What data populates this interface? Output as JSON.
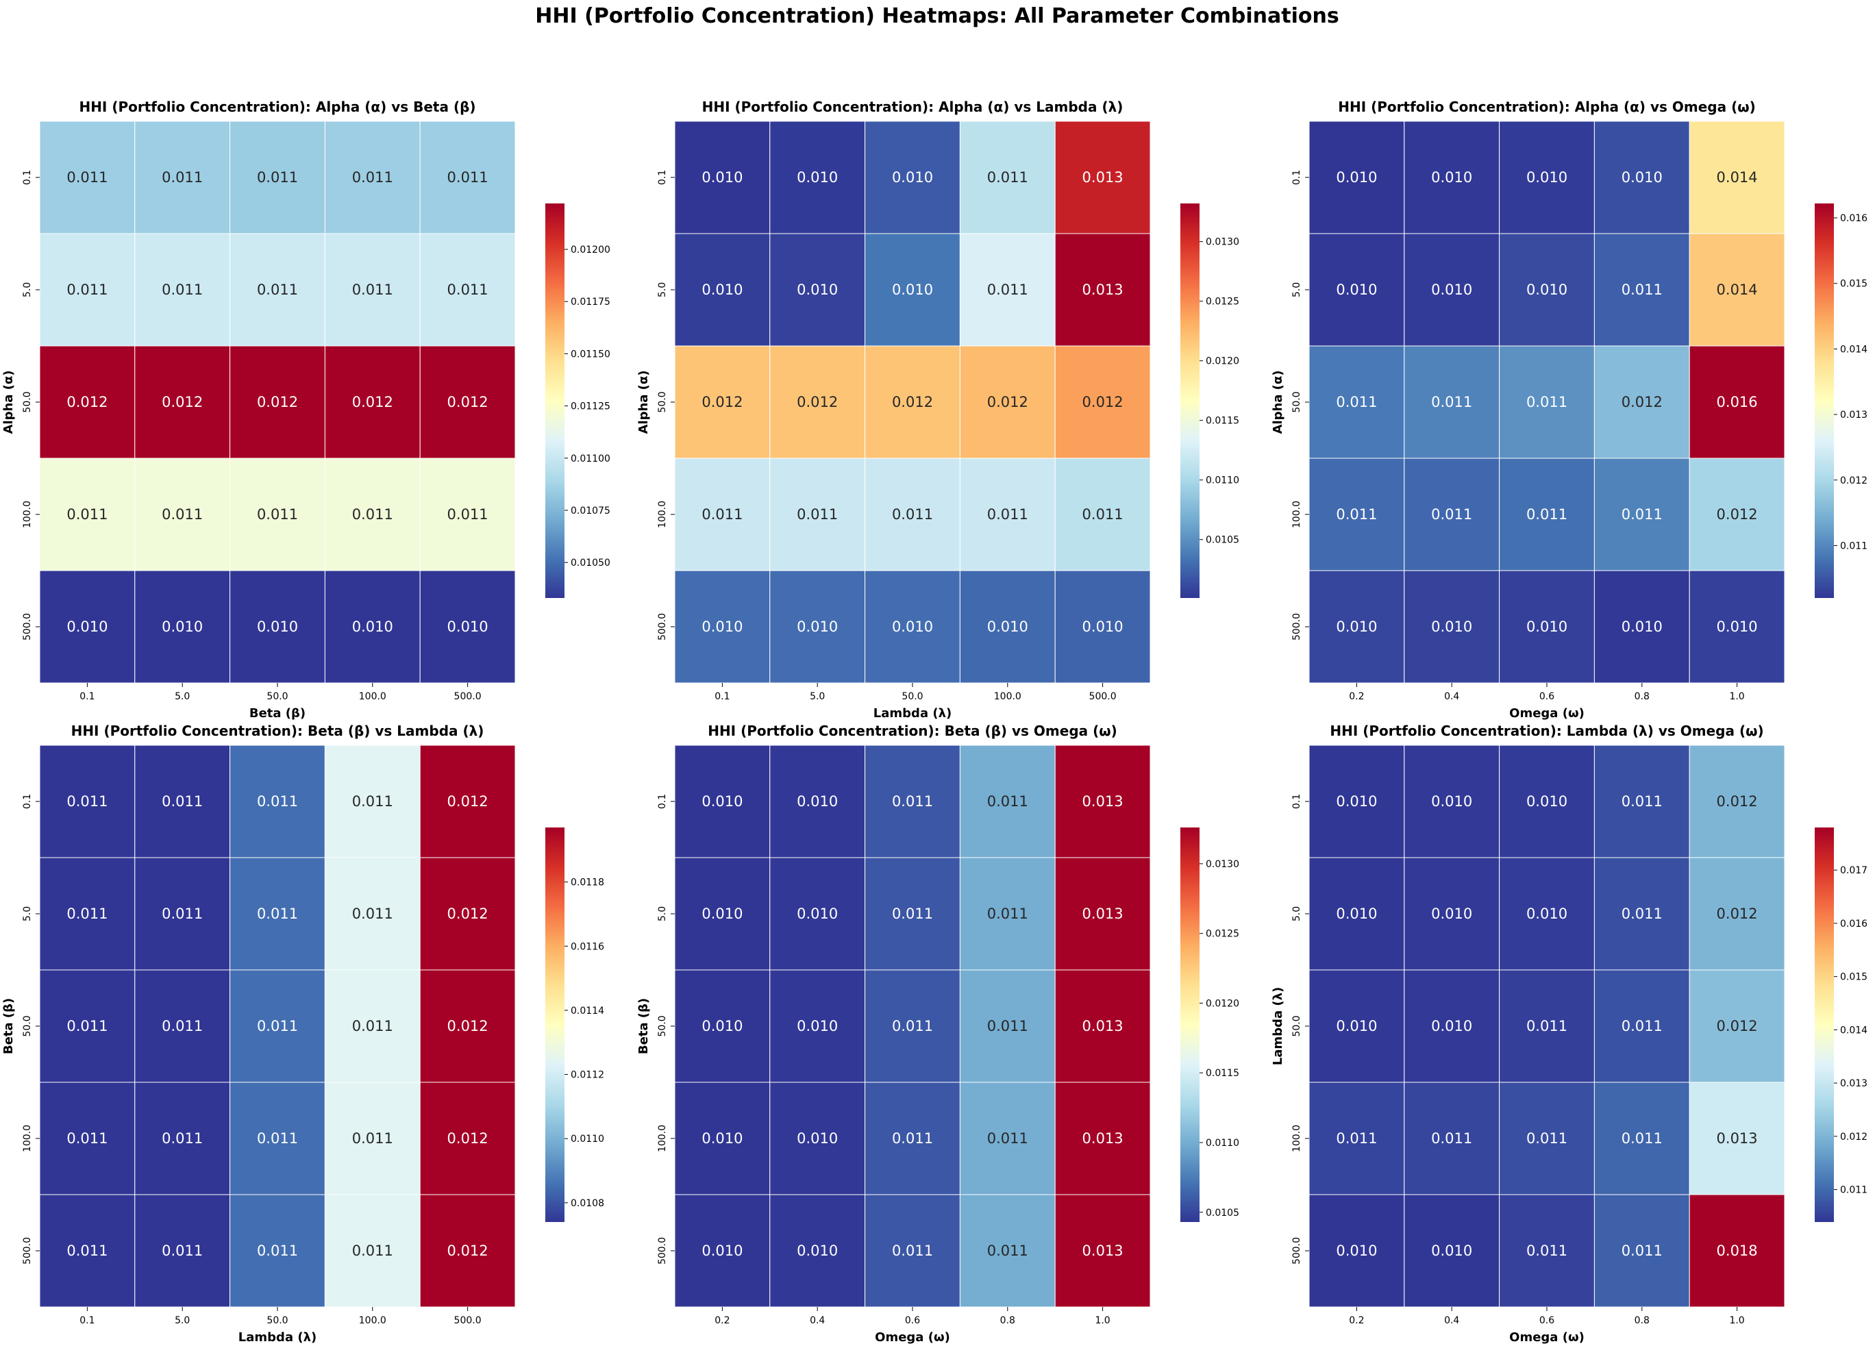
{
  "figure": {
    "suptitle": "HHI (Portfolio Concentration) Heatmaps: All Parameter Combinations",
    "colormap": "RdYlBu_r",
    "colormap_stops": [
      "#313695",
      "#4575b4",
      "#74add1",
      "#abd9e9",
      "#e0f3f8",
      "#ffffbf",
      "#fee090",
      "#fdae61",
      "#f46d43",
      "#d73027",
      "#a50026"
    ]
  },
  "chart_data": [
    {
      "type": "heatmap",
      "title": "HHI (Portfolio Concentration): Alpha (α) vs Beta (β)",
      "xlabel": "Beta (β)",
      "ylabel": "Alpha (α)",
      "x_categories": [
        "0.1",
        "5.0",
        "50.0",
        "100.0",
        "500.0"
      ],
      "y_categories": [
        "0.1",
        "5.0",
        "50.0",
        "100.0",
        "500.0"
      ],
      "values": [
        [
          0.01085,
          0.01085,
          0.01084,
          0.01085,
          0.01085
        ],
        [
          0.01102,
          0.01102,
          0.01102,
          0.01102,
          0.01102
        ],
        [
          0.01222,
          0.01222,
          0.01222,
          0.01222,
          0.01222
        ],
        [
          0.01119,
          0.01119,
          0.01119,
          0.01119,
          0.01119
        ],
        [
          0.01033,
          0.01033,
          0.01033,
          0.01033,
          0.01033
        ]
      ],
      "annotations": [
        [
          "0.011",
          "0.011",
          "0.011",
          "0.011",
          "0.011"
        ],
        [
          "0.011",
          "0.011",
          "0.011",
          "0.011",
          "0.011"
        ],
        [
          "0.012",
          "0.012",
          "0.012",
          "0.012",
          "0.012"
        ],
        [
          "0.011",
          "0.011",
          "0.011",
          "0.011",
          "0.011"
        ],
        [
          "0.010",
          "0.010",
          "0.010",
          "0.010",
          "0.010"
        ]
      ],
      "colorbar": {
        "range": [
          0.01033,
          0.01222
        ],
        "ticks": [
          "0.01050",
          "0.01075",
          "0.01100",
          "0.01125",
          "0.01150",
          "0.01175",
          "0.01200"
        ]
      }
    },
    {
      "type": "heatmap",
      "title": "HHI (Portfolio Concentration): Alpha (α) vs Lambda (λ)",
      "xlabel": "Lambda (λ)",
      "ylabel": "Alpha (α)",
      "x_categories": [
        "0.1",
        "5.0",
        "50.0",
        "100.0",
        "500.0"
      ],
      "y_categories": [
        "0.1",
        "5.0",
        "50.0",
        "100.0",
        "500.0"
      ],
      "values": [
        [
          0.01001,
          0.01003,
          0.0102,
          0.0111,
          0.0131
        ],
        [
          0.01005,
          0.01007,
          0.01035,
          0.0113,
          0.01332
        ],
        [
          0.01218,
          0.01218,
          0.01218,
          0.01224,
          0.0124
        ],
        [
          0.0112,
          0.0112,
          0.0112,
          0.0112,
          0.0111
        ],
        [
          0.0103,
          0.0103,
          0.0103,
          0.01028,
          0.01025
        ]
      ],
      "annotations": [
        [
          "0.010",
          "0.010",
          "0.010",
          "0.011",
          "0.013"
        ],
        [
          "0.010",
          "0.010",
          "0.010",
          "0.011",
          "0.013"
        ],
        [
          "0.012",
          "0.012",
          "0.012",
          "0.012",
          "0.012"
        ],
        [
          "0.011",
          "0.011",
          "0.011",
          "0.011",
          "0.011"
        ],
        [
          "0.010",
          "0.010",
          "0.010",
          "0.010",
          "0.010"
        ]
      ],
      "colorbar": {
        "range": [
          0.01001,
          0.01332
        ],
        "ticks": [
          "0.0105",
          "0.0110",
          "0.0115",
          "0.0120",
          "0.0125",
          "0.0130"
        ]
      }
    },
    {
      "type": "heatmap",
      "title": "HHI (Portfolio Concentration): Alpha (α) vs Omega (ω)",
      "xlabel": "Omega (ω)",
      "ylabel": "Alpha (α)",
      "x_categories": [
        "0.2",
        "0.4",
        "0.6",
        "0.8",
        "1.0"
      ],
      "y_categories": [
        "0.1",
        "5.0",
        "50.0",
        "100.0",
        "500.0"
      ],
      "values": [
        [
          0.0102,
          0.01022,
          0.01025,
          0.01045,
          0.0137
        ],
        [
          0.01022,
          0.01025,
          0.0104,
          0.0106,
          0.0141
        ],
        [
          0.01085,
          0.01095,
          0.0111,
          0.0116,
          0.01622
        ],
        [
          0.0107,
          0.01068,
          0.01075,
          0.01095,
          0.01195
        ],
        [
          0.01035,
          0.01032,
          0.0103,
          0.01022,
          0.0103
        ]
      ],
      "annotations": [
        [
          "0.010",
          "0.010",
          "0.010",
          "0.010",
          "0.014"
        ],
        [
          "0.010",
          "0.010",
          "0.010",
          "0.011",
          "0.014"
        ],
        [
          "0.011",
          "0.011",
          "0.011",
          "0.012",
          "0.016"
        ],
        [
          "0.011",
          "0.011",
          "0.011",
          "0.011",
          "0.012"
        ],
        [
          "0.010",
          "0.010",
          "0.010",
          "0.010",
          "0.010"
        ]
      ],
      "colorbar": {
        "range": [
          0.0102,
          0.01622
        ],
        "ticks": [
          "0.011",
          "0.012",
          "0.013",
          "0.014",
          "0.015",
          "0.016"
        ]
      }
    },
    {
      "type": "heatmap",
      "title": "HHI (Portfolio Concentration): Beta (β) vs Lambda (λ)",
      "xlabel": "Lambda (λ)",
      "ylabel": "Beta (β)",
      "x_categories": [
        "0.1",
        "5.0",
        "50.0",
        "100.0",
        "500.0"
      ],
      "y_categories": [
        "0.1",
        "5.0",
        "50.0",
        "100.0",
        "500.0"
      ],
      "values": [
        [
          0.01074,
          0.01074,
          0.01085,
          0.01124,
          0.01197
        ],
        [
          0.01074,
          0.01074,
          0.01085,
          0.01124,
          0.01197
        ],
        [
          0.01074,
          0.01074,
          0.01085,
          0.01124,
          0.01197
        ],
        [
          0.01074,
          0.01074,
          0.01085,
          0.01124,
          0.01197
        ],
        [
          0.01074,
          0.01074,
          0.01085,
          0.01124,
          0.01197
        ]
      ],
      "annotations": [
        [
          "0.011",
          "0.011",
          "0.011",
          "0.011",
          "0.012"
        ],
        [
          "0.011",
          "0.011",
          "0.011",
          "0.011",
          "0.012"
        ],
        [
          "0.011",
          "0.011",
          "0.011",
          "0.011",
          "0.012"
        ],
        [
          "0.011",
          "0.011",
          "0.011",
          "0.011",
          "0.012"
        ],
        [
          "0.011",
          "0.011",
          "0.011",
          "0.011",
          "0.012"
        ]
      ],
      "colorbar": {
        "range": [
          0.01074,
          0.01197
        ],
        "ticks": [
          "0.0108",
          "0.0110",
          "0.0112",
          "0.0114",
          "0.0116",
          "0.0118"
        ]
      }
    },
    {
      "type": "heatmap",
      "title": "HHI (Portfolio Concentration): Beta (β) vs Omega (ω)",
      "xlabel": "Omega (ω)",
      "ylabel": "Beta (β)",
      "x_categories": [
        "0.2",
        "0.4",
        "0.6",
        "0.8",
        "1.0"
      ],
      "y_categories": [
        "0.1",
        "5.0",
        "50.0",
        "100.0",
        "500.0"
      ],
      "values": [
        [
          0.01043,
          0.01044,
          0.01058,
          0.011,
          0.01326
        ],
        [
          0.01043,
          0.01044,
          0.01058,
          0.011,
          0.01326
        ],
        [
          0.01043,
          0.01044,
          0.01058,
          0.011,
          0.01326
        ],
        [
          0.01043,
          0.01044,
          0.01058,
          0.011,
          0.01326
        ],
        [
          0.01043,
          0.01044,
          0.01058,
          0.011,
          0.01326
        ]
      ],
      "annotations": [
        [
          "0.010",
          "0.010",
          "0.011",
          "0.011",
          "0.013"
        ],
        [
          "0.010",
          "0.010",
          "0.011",
          "0.011",
          "0.013"
        ],
        [
          "0.010",
          "0.010",
          "0.011",
          "0.011",
          "0.013"
        ],
        [
          "0.010",
          "0.010",
          "0.011",
          "0.011",
          "0.013"
        ],
        [
          "0.010",
          "0.010",
          "0.011",
          "0.011",
          "0.013"
        ]
      ],
      "colorbar": {
        "range": [
          0.01043,
          0.01326
        ],
        "ticks": [
          "0.0105",
          "0.0110",
          "0.0115",
          "0.0120",
          "0.0125",
          "0.0130"
        ]
      }
    },
    {
      "type": "heatmap",
      "title": "HHI (Portfolio Concentration): Lambda (λ) vs Omega (ω)",
      "xlabel": "Omega (ω)",
      "ylabel": "Lambda (λ)",
      "x_categories": [
        "0.2",
        "0.4",
        "0.6",
        "0.8",
        "1.0"
      ],
      "y_categories": [
        "0.1",
        "5.0",
        "50.0",
        "100.0",
        "500.0"
      ],
      "values": [
        [
          0.0104,
          0.01042,
          0.01045,
          0.0107,
          0.012
        ],
        [
          0.0104,
          0.01042,
          0.01046,
          0.0107,
          0.012
        ],
        [
          0.01041,
          0.01043,
          0.0105,
          0.01072,
          0.01215
        ],
        [
          0.01055,
          0.01058,
          0.01068,
          0.01095,
          0.0131
        ],
        [
          0.01039,
          0.0104,
          0.01052,
          0.0109,
          0.0178
        ]
      ],
      "annotations": [
        [
          "0.010",
          "0.010",
          "0.010",
          "0.011",
          "0.012"
        ],
        [
          "0.010",
          "0.010",
          "0.010",
          "0.011",
          "0.012"
        ],
        [
          "0.010",
          "0.010",
          "0.011",
          "0.011",
          "0.012"
        ],
        [
          "0.011",
          "0.011",
          "0.011",
          "0.011",
          "0.013"
        ],
        [
          "0.010",
          "0.010",
          "0.011",
          "0.011",
          "0.018"
        ]
      ],
      "colorbar": {
        "range": [
          0.01039,
          0.0178
        ],
        "ticks": [
          "0.011",
          "0.012",
          "0.013",
          "0.014",
          "0.015",
          "0.016",
          "0.017"
        ]
      }
    }
  ]
}
